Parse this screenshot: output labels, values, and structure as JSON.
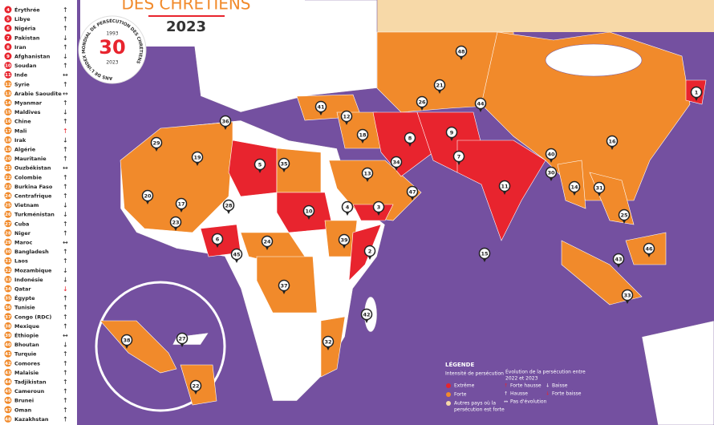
{
  "header": {
    "title": "DES CHRÉTIENS",
    "year": "2023"
  },
  "badge": {
    "number": "30",
    "from": "1993",
    "to": "2023",
    "ring": "ANS DE L'INDEX MONDIAL DE PERSÉCUTION DES CHRÉTIENS"
  },
  "countries": [
    {
      "rank": 4,
      "name": "Érythrée",
      "trend": "↑",
      "color": "#e8242e"
    },
    {
      "rank": 5,
      "name": "Libye",
      "trend": "↑",
      "color": "#e8242e"
    },
    {
      "rank": 6,
      "name": "Nigéria",
      "trend": "↑",
      "color": "#e8242e"
    },
    {
      "rank": 7,
      "name": "Pakistan",
      "trend": "↓",
      "color": "#e8242e"
    },
    {
      "rank": 8,
      "name": "Iran",
      "trend": "↑",
      "color": "#e8242e"
    },
    {
      "rank": 9,
      "name": "Afghanistan",
      "trend": "↓",
      "color": "#e8242e"
    },
    {
      "rank": 10,
      "name": "Soudan",
      "trend": "↑",
      "color": "#e8242e"
    },
    {
      "rank": 11,
      "name": "Inde",
      "trend": "↔",
      "color": "#e8242e"
    },
    {
      "rank": 12,
      "name": "Syrie",
      "trend": "↑",
      "color": "#f18a2b"
    },
    {
      "rank": 13,
      "name": "Arabie Saoudite",
      "trend": "↔",
      "color": "#f18a2b"
    },
    {
      "rank": 14,
      "name": "Myanmar",
      "trend": "↑",
      "color": "#f18a2b"
    },
    {
      "rank": 15,
      "name": "Maldives",
      "trend": "↓",
      "color": "#f18a2b"
    },
    {
      "rank": 16,
      "name": "Chine",
      "trend": "↑",
      "color": "#f18a2b"
    },
    {
      "rank": 17,
      "name": "Mali",
      "trend": "↑",
      "color": "#f18a2b",
      "trend_color": "#e8242e"
    },
    {
      "rank": 18,
      "name": "Irak",
      "trend": "↓",
      "color": "#f18a2b"
    },
    {
      "rank": 19,
      "name": "Algérie",
      "trend": "↑",
      "color": "#f18a2b"
    },
    {
      "rank": 20,
      "name": "Mauritanie",
      "trend": "↑",
      "color": "#f18a2b"
    },
    {
      "rank": 21,
      "name": "Ouzbékistan",
      "trend": "↔",
      "color": "#f18a2b"
    },
    {
      "rank": 22,
      "name": "Colombie",
      "trend": "↑",
      "color": "#f18a2b"
    },
    {
      "rank": 23,
      "name": "Burkina Faso",
      "trend": "↑",
      "color": "#f18a2b"
    },
    {
      "rank": 24,
      "name": "Centrafrique",
      "trend": "↑",
      "color": "#f18a2b"
    },
    {
      "rank": 25,
      "name": "Vietnam",
      "trend": "↓",
      "color": "#f18a2b"
    },
    {
      "rank": 26,
      "name": "Turkménistan",
      "trend": "↓",
      "color": "#f18a2b"
    },
    {
      "rank": 27,
      "name": "Cuba",
      "trend": "↑",
      "color": "#f18a2b"
    },
    {
      "rank": 28,
      "name": "Niger",
      "trend": "↑",
      "color": "#f18a2b"
    },
    {
      "rank": 29,
      "name": "Maroc",
      "trend": "↔",
      "color": "#f18a2b"
    },
    {
      "rank": 30,
      "name": "Bangladesh",
      "trend": "↑",
      "color": "#f18a2b"
    },
    {
      "rank": 31,
      "name": "Laos",
      "trend": "↑",
      "color": "#f18a2b"
    },
    {
      "rank": 32,
      "name": "Mozambique",
      "trend": "↓",
      "color": "#f18a2b"
    },
    {
      "rank": 33,
      "name": "Indonésie",
      "trend": "↓",
      "color": "#f18a2b"
    },
    {
      "rank": 34,
      "name": "Qatar",
      "trend": "↓",
      "color": "#f18a2b",
      "trend_color": "#e8242e"
    },
    {
      "rank": 35,
      "name": "Égypte",
      "trend": "↑",
      "color": "#f18a2b"
    },
    {
      "rank": 36,
      "name": "Tunisie",
      "trend": "↑",
      "color": "#f18a2b"
    },
    {
      "rank": 37,
      "name": "Congo (RDC)",
      "trend": "↑",
      "color": "#f18a2b"
    },
    {
      "rank": 38,
      "name": "Mexique",
      "trend": "↑",
      "color": "#f18a2b"
    },
    {
      "rank": 39,
      "name": "Éthiopie",
      "trend": "↔",
      "color": "#f18a2b"
    },
    {
      "rank": 40,
      "name": "Bhoutan",
      "trend": "↓",
      "color": "#f18a2b"
    },
    {
      "rank": 41,
      "name": "Turquie",
      "trend": "↑",
      "color": "#f18a2b"
    },
    {
      "rank": 42,
      "name": "Comores",
      "trend": "↑",
      "color": "#f18a2b"
    },
    {
      "rank": 43,
      "name": "Malaisie",
      "trend": "↑",
      "color": "#f18a2b"
    },
    {
      "rank": 44,
      "name": "Tadjikistan",
      "trend": "↑",
      "color": "#f18a2b"
    },
    {
      "rank": 45,
      "name": "Cameroun",
      "trend": "↑",
      "color": "#f18a2b"
    },
    {
      "rank": 46,
      "name": "Brunei",
      "trend": "↑",
      "color": "#f18a2b"
    },
    {
      "rank": 47,
      "name": "Oman",
      "trend": "↑",
      "color": "#f18a2b"
    },
    {
      "rank": 48,
      "name": "Kazakhstan",
      "trend": "↑",
      "color": "#f18a2b"
    }
  ],
  "pins": [
    1,
    2,
    3,
    4,
    5,
    6,
    7,
    8,
    9,
    10,
    11,
    12,
    13,
    14,
    15,
    16,
    17,
    18,
    19,
    20,
    21,
    22,
    23,
    24,
    25,
    26,
    27,
    28,
    29,
    30,
    31,
    32,
    33,
    34,
    35,
    36,
    37,
    38,
    39,
    40,
    41,
    42,
    43,
    44,
    45,
    46,
    47,
    48
  ],
  "legend": {
    "title": "LÉGENDE",
    "intensity": "Intensité de persécution",
    "extreme": "Extrême",
    "strong": "Forte",
    "other": [
      "Autres pays où la",
      "persécution est forte"
    ],
    "evolution": [
      "Évolution de la persécution entre",
      "2022 et 2023"
    ],
    "strong_rise": "Forte hausse",
    "rise": "Hausse",
    "none": "Pas d'évolution",
    "fall": "Baisse",
    "strong_fall": "Forte baisse"
  }
}
